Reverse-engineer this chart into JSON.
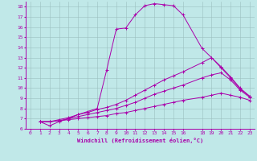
{
  "xlabel": "Windchill (Refroidissement éolien,°C)",
  "background_color": "#c0e8e8",
  "grid_color": "#9bbfbf",
  "line_color": "#aa00aa",
  "xlim": [
    -0.5,
    23.5
  ],
  "ylim": [
    6,
    18.5
  ],
  "xticks": [
    0,
    1,
    2,
    3,
    4,
    5,
    6,
    7,
    8,
    9,
    10,
    11,
    12,
    13,
    14,
    15,
    16,
    18,
    19,
    20,
    21,
    22,
    23
  ],
  "yticks": [
    6,
    7,
    8,
    9,
    10,
    11,
    12,
    13,
    14,
    15,
    16,
    17,
    18
  ],
  "series": [
    {
      "x": [
        1,
        2,
        3,
        4,
        5,
        6,
        7,
        8,
        9,
        10,
        11,
        12,
        13,
        14,
        15,
        16,
        18,
        19,
        20,
        21,
        22,
        23
      ],
      "y": [
        6.7,
        6.3,
        6.7,
        7.0,
        7.4,
        7.7,
        8.0,
        11.8,
        15.8,
        15.9,
        17.2,
        18.1,
        18.3,
        18.2,
        18.1,
        17.2,
        13.9,
        13.0,
        12.0,
        11.0,
        9.9,
        9.2
      ]
    },
    {
      "x": [
        1,
        2,
        3,
        4,
        5,
        6,
        7,
        8,
        9,
        10,
        11,
        12,
        13,
        14,
        15,
        16,
        18,
        19,
        20,
        21,
        22,
        23
      ],
      "y": [
        6.7,
        6.7,
        6.9,
        7.1,
        7.4,
        7.6,
        7.9,
        8.1,
        8.4,
        8.8,
        9.3,
        9.8,
        10.3,
        10.8,
        11.2,
        11.6,
        12.5,
        13.0,
        12.1,
        11.1,
        10.0,
        9.2
      ]
    },
    {
      "x": [
        1,
        2,
        3,
        4,
        5,
        6,
        7,
        8,
        9,
        10,
        11,
        12,
        13,
        14,
        15,
        16,
        18,
        19,
        20,
        21,
        22,
        23
      ],
      "y": [
        6.7,
        6.7,
        6.8,
        7.0,
        7.2,
        7.4,
        7.6,
        7.8,
        8.0,
        8.3,
        8.6,
        9.0,
        9.4,
        9.7,
        10.0,
        10.3,
        11.0,
        11.3,
        11.5,
        10.8,
        9.8,
        9.1
      ]
    },
    {
      "x": [
        1,
        2,
        3,
        4,
        5,
        6,
        7,
        8,
        9,
        10,
        11,
        12,
        13,
        14,
        15,
        16,
        18,
        19,
        20,
        21,
        22,
        23
      ],
      "y": [
        6.7,
        6.7,
        6.8,
        6.9,
        7.0,
        7.1,
        7.2,
        7.3,
        7.5,
        7.6,
        7.8,
        8.0,
        8.2,
        8.4,
        8.6,
        8.8,
        9.1,
        9.3,
        9.5,
        9.3,
        9.1,
        8.8
      ]
    }
  ]
}
